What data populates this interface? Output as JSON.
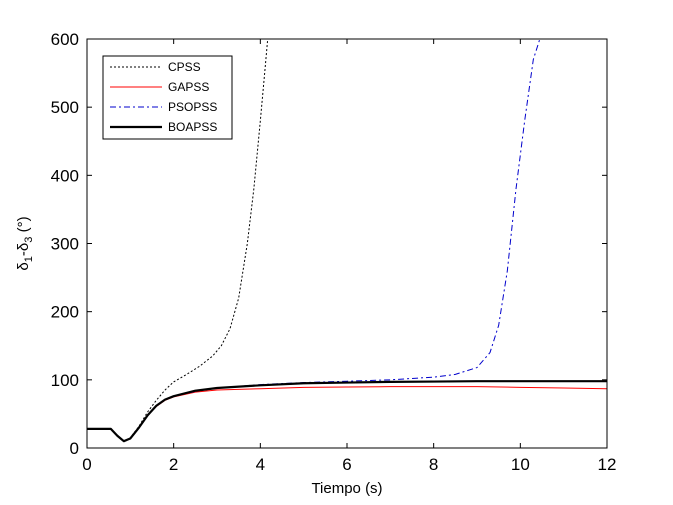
{
  "chart_data": {
    "type": "line",
    "title": "",
    "xlabel": "Tiempo (s)",
    "ylabel": "δ1-δ3 (°)",
    "ylabel_parts": {
      "a": "δ",
      "a_sub": "1",
      "mid": "-δ",
      "b_sub": "3",
      "tail": " (°)"
    },
    "xlim": [
      0,
      12
    ],
    "ylim": [
      0,
      600
    ],
    "xticks": [
      0,
      2,
      4,
      6,
      8,
      10,
      12
    ],
    "yticks": [
      0,
      100,
      200,
      300,
      400,
      500,
      600
    ],
    "grid": false,
    "legend_position": "top-left",
    "series": [
      {
        "name": "CPSS",
        "color": "#000000",
        "style": "dotted",
        "points": [
          [
            0,
            28
          ],
          [
            0.55,
            28
          ],
          [
            0.7,
            18
          ],
          [
            0.85,
            10
          ],
          [
            1.0,
            15
          ],
          [
            1.2,
            32
          ],
          [
            1.4,
            53
          ],
          [
            1.6,
            70
          ],
          [
            1.8,
            85
          ],
          [
            2.0,
            97
          ],
          [
            2.3,
            108
          ],
          [
            2.6,
            120
          ],
          [
            2.9,
            135
          ],
          [
            3.1,
            150
          ],
          [
            3.3,
            175
          ],
          [
            3.5,
            220
          ],
          [
            3.7,
            300
          ],
          [
            3.85,
            380
          ],
          [
            4.0,
            480
          ],
          [
            4.1,
            550
          ],
          [
            4.17,
            600
          ]
        ]
      },
      {
        "name": "GAPSS",
        "color": "#ff0000",
        "style": "solid",
        "points": [
          [
            0,
            28
          ],
          [
            0.55,
            28
          ],
          [
            0.7,
            18
          ],
          [
            0.85,
            10
          ],
          [
            1.0,
            14
          ],
          [
            1.2,
            30
          ],
          [
            1.4,
            48
          ],
          [
            1.6,
            61
          ],
          [
            1.8,
            70
          ],
          [
            2.0,
            75
          ],
          [
            2.5,
            82
          ],
          [
            3.0,
            85
          ],
          [
            4.0,
            87
          ],
          [
            5.0,
            89
          ],
          [
            6.0,
            89.5
          ],
          [
            7.0,
            90
          ],
          [
            8.0,
            90
          ],
          [
            9.0,
            90
          ],
          [
            10.0,
            89
          ],
          [
            11.0,
            88
          ],
          [
            12.0,
            87
          ]
        ]
      },
      {
        "name": "PSOPSS",
        "color": "#0000cc",
        "style": "dashdot",
        "points": [
          [
            0,
            28
          ],
          [
            0.55,
            28
          ],
          [
            0.7,
            18
          ],
          [
            0.85,
            10
          ],
          [
            1.0,
            14
          ],
          [
            1.2,
            30
          ],
          [
            1.4,
            48
          ],
          [
            1.6,
            62
          ],
          [
            1.8,
            71
          ],
          [
            2.0,
            76
          ],
          [
            2.5,
            83
          ],
          [
            3.0,
            88
          ],
          [
            4.0,
            93
          ],
          [
            5.0,
            96
          ],
          [
            6.0,
            98
          ],
          [
            7.0,
            100
          ],
          [
            8.0,
            104
          ],
          [
            8.5,
            108
          ],
          [
            9.0,
            118
          ],
          [
            9.3,
            140
          ],
          [
            9.5,
            180
          ],
          [
            9.7,
            260
          ],
          [
            9.9,
            380
          ],
          [
            10.1,
            480
          ],
          [
            10.3,
            570
          ],
          [
            10.45,
            600
          ]
        ]
      },
      {
        "name": "BOAPSS",
        "color": "#000000",
        "style": "solid-thick",
        "points": [
          [
            0,
            28
          ],
          [
            0.55,
            28
          ],
          [
            0.7,
            18
          ],
          [
            0.85,
            10
          ],
          [
            1.0,
            14
          ],
          [
            1.2,
            30
          ],
          [
            1.4,
            48
          ],
          [
            1.6,
            62
          ],
          [
            1.8,
            71
          ],
          [
            2.0,
            76
          ],
          [
            2.5,
            84
          ],
          [
            3.0,
            88
          ],
          [
            4.0,
            92
          ],
          [
            5.0,
            95
          ],
          [
            6.0,
            96
          ],
          [
            7.0,
            97
          ],
          [
            8.0,
            97.5
          ],
          [
            9.0,
            98
          ],
          [
            10.0,
            98
          ],
          [
            11.0,
            98
          ],
          [
            12.0,
            98
          ]
        ]
      }
    ]
  }
}
